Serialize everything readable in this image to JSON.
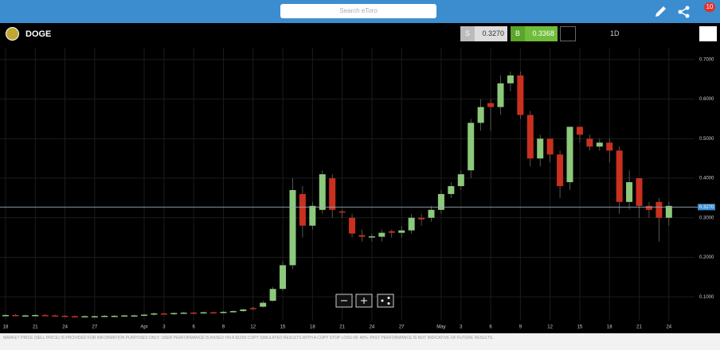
{
  "header": {
    "search_placeholder": "Search eToro",
    "notification_count": "10"
  },
  "toolbar": {
    "symbol": "DOGE",
    "sell_label": "S",
    "sell_price": "0.3270",
    "buy_label": "B",
    "buy_price": "0.3368",
    "timeframe": "1D"
  },
  "chart_data": {
    "type": "candlestick",
    "categories": [
      "18",
      null,
      null,
      "21",
      null,
      null,
      "24",
      null,
      null,
      "27",
      null,
      null,
      null,
      null,
      "Apr",
      null,
      "3",
      null,
      null,
      "6",
      null,
      null,
      "9",
      null,
      null,
      "12",
      null,
      null,
      "15",
      null,
      null,
      "18",
      null,
      null,
      "21",
      null,
      null,
      "24",
      null,
      null,
      "27",
      null,
      null,
      null,
      "May",
      null,
      "3",
      null,
      null,
      "6",
      null,
      null,
      "9",
      null,
      null,
      "12",
      null,
      null,
      "15",
      null,
      null,
      "18",
      null,
      null,
      "21",
      null,
      null,
      "24"
    ],
    "open": [
      0.053,
      0.054,
      0.053,
      0.053,
      0.054,
      0.053,
      0.052,
      0.051,
      0.05,
      0.051,
      0.051,
      0.052,
      0.052,
      0.053,
      0.053,
      0.055,
      0.058,
      0.057,
      0.059,
      0.06,
      0.059,
      0.061,
      0.06,
      0.062,
      0.064,
      0.072,
      0.075,
      0.09,
      0.12,
      0.18,
      0.36,
      0.28,
      0.32,
      0.4,
      0.316,
      0.3,
      0.256,
      0.252,
      0.252,
      0.266,
      0.262,
      0.268,
      0.3,
      0.3,
      0.32,
      0.36,
      0.38,
      0.42,
      0.54,
      0.59,
      0.58,
      0.64,
      0.66,
      0.56,
      0.45,
      0.5,
      0.46,
      0.39,
      0.53,
      0.5,
      0.48,
      0.49,
      0.47,
      0.34,
      0.4,
      0.33,
      0.34,
      0.3
    ],
    "high": [
      0.056,
      0.056,
      0.055,
      0.056,
      0.056,
      0.055,
      0.054,
      0.053,
      0.053,
      0.053,
      0.054,
      0.054,
      0.055,
      0.055,
      0.057,
      0.06,
      0.06,
      0.061,
      0.062,
      0.062,
      0.063,
      0.063,
      0.064,
      0.066,
      0.07,
      0.075,
      0.09,
      0.125,
      0.19,
      0.4,
      0.38,
      0.34,
      0.42,
      0.41,
      0.32,
      0.31,
      0.27,
      0.26,
      0.27,
      0.27,
      0.28,
      0.31,
      0.31,
      0.33,
      0.37,
      0.39,
      0.42,
      0.55,
      0.6,
      0.6,
      0.66,
      0.67,
      0.67,
      0.57,
      0.51,
      0.5,
      0.47,
      0.53,
      0.53,
      0.51,
      0.5,
      0.5,
      0.48,
      0.42,
      0.4,
      0.34,
      0.35,
      0.34
    ],
    "low": [
      0.051,
      0.051,
      0.051,
      0.051,
      0.051,
      0.05,
      0.049,
      0.048,
      0.048,
      0.049,
      0.049,
      0.05,
      0.05,
      0.051,
      0.051,
      0.053,
      0.055,
      0.055,
      0.057,
      0.057,
      0.057,
      0.058,
      0.058,
      0.06,
      0.062,
      0.066,
      0.073,
      0.088,
      0.115,
      0.17,
      0.25,
      0.27,
      0.31,
      0.3,
      0.3,
      0.25,
      0.24,
      0.24,
      0.24,
      0.25,
      0.25,
      0.26,
      0.28,
      0.29,
      0.31,
      0.35,
      0.37,
      0.4,
      0.52,
      0.52,
      0.56,
      0.62,
      0.55,
      0.43,
      0.43,
      0.44,
      0.35,
      0.37,
      0.49,
      0.47,
      0.47,
      0.44,
      0.31,
      0.32,
      0.3,
      0.3,
      0.24,
      0.28
    ],
    "close": [
      0.054,
      0.053,
      0.053,
      0.054,
      0.053,
      0.052,
      0.051,
      0.05,
      0.051,
      0.051,
      0.052,
      0.052,
      0.053,
      0.053,
      0.055,
      0.058,
      0.057,
      0.059,
      0.06,
      0.059,
      0.061,
      0.06,
      0.062,
      0.064,
      0.068,
      0.07,
      0.085,
      0.12,
      0.18,
      0.37,
      0.28,
      0.33,
      0.41,
      0.32,
      0.314,
      0.26,
      0.252,
      0.253,
      0.262,
      0.262,
      0.268,
      0.3,
      0.296,
      0.32,
      0.36,
      0.38,
      0.41,
      0.54,
      0.58,
      0.58,
      0.64,
      0.66,
      0.56,
      0.45,
      0.5,
      0.46,
      0.38,
      0.53,
      0.51,
      0.48,
      0.49,
      0.47,
      0.34,
      0.39,
      0.33,
      0.32,
      0.3,
      0.33
    ],
    "up_color": "#8dc97c",
    "down_color": "#c9301f",
    "ylim": [
      0.04,
      0.73
    ],
    "yticks": [
      {
        "value": 0.1,
        "label": "0.1000"
      },
      {
        "value": 0.2,
        "label": "0.2000"
      },
      {
        "value": 0.3,
        "label": "0.3000"
      },
      {
        "value": 0.4,
        "label": "0.4000"
      },
      {
        "value": 0.5,
        "label": "0.5000"
      },
      {
        "value": 0.6,
        "label": "0.6000"
      },
      {
        "value": 0.7,
        "label": "0.7000"
      }
    ],
    "grid": true,
    "price_line": {
      "value": 0.327,
      "label": "0.3270"
    }
  },
  "footer": {
    "disclaimer": "MARKET PRICE (SELL PRICE) IS PROVIDED FOR INFORMATION PURPOSES ONLY. USER PERFORMANCE IS BASED ON A $1000 COPY SIMULATED RESULTS WITH A COPY STOP LOSS OF 40%. PAST PERFORMANCE IS NOT INDICATIVE OF FUTURE RESULTS."
  }
}
